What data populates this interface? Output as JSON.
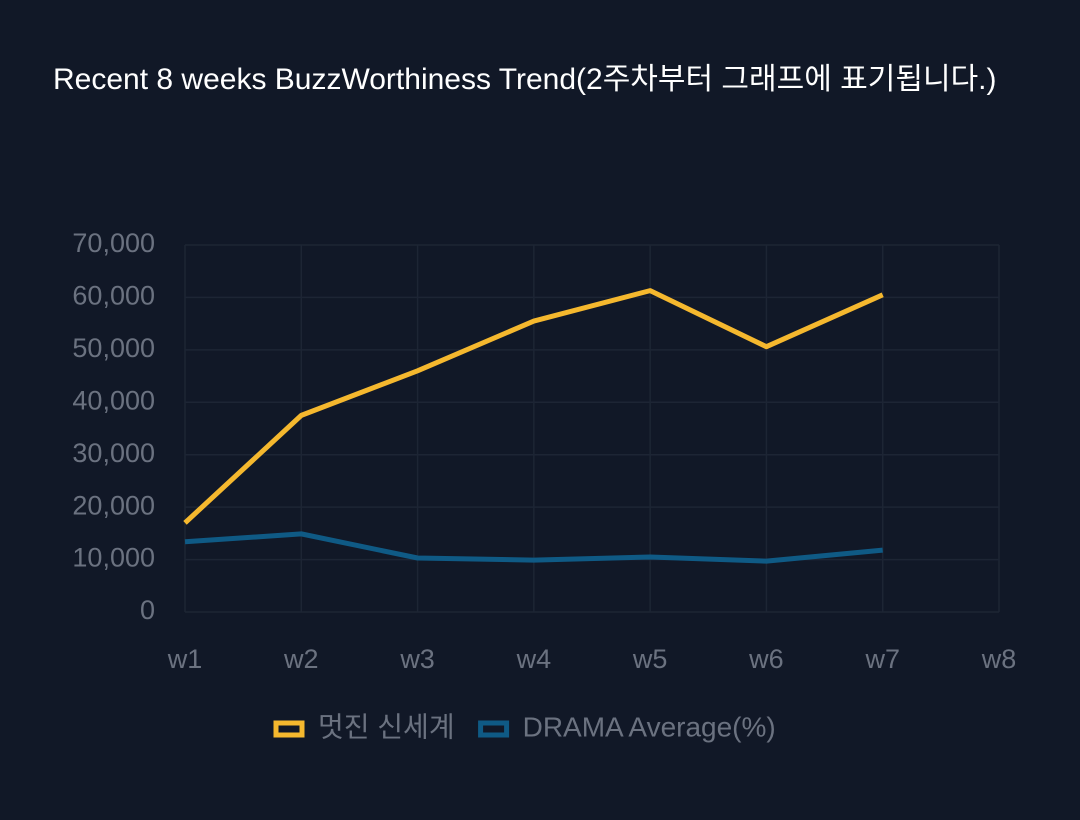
{
  "chart_data": {
    "type": "line",
    "title": "Recent 8 weeks BuzzWorthiness Trend(2주차부터 그래프에 표기됩니다.)",
    "categories": [
      "w1",
      "w2",
      "w3",
      "w4",
      "w5",
      "w6",
      "w7",
      "w8"
    ],
    "series": [
      {
        "name": "멋진 신세계",
        "color": "#f5b82e",
        "values": [
          17000,
          37500,
          46000,
          55500,
          61300,
          50600,
          60500,
          null
        ]
      },
      {
        "name": "DRAMA Average(%)",
        "color": "#0f5a85",
        "values": [
          13400,
          14900,
          10300,
          9900,
          10500,
          9700,
          11800,
          null
        ]
      }
    ],
    "ylim": [
      0,
      70000
    ],
    "yticks": [
      0,
      {
        "value": 10000,
        "label": "10,000"
      },
      {
        "value": 20000,
        "label": "20,000"
      },
      {
        "value": 30000,
        "label": "30,000"
      },
      {
        "value": 40000,
        "label": "40,000"
      },
      {
        "value": 50000,
        "label": "50,000"
      },
      {
        "value": 60000,
        "label": "60,000"
      },
      {
        "value": 70000,
        "label": "70,000"
      }
    ],
    "grid": true,
    "legend": "bottom"
  }
}
